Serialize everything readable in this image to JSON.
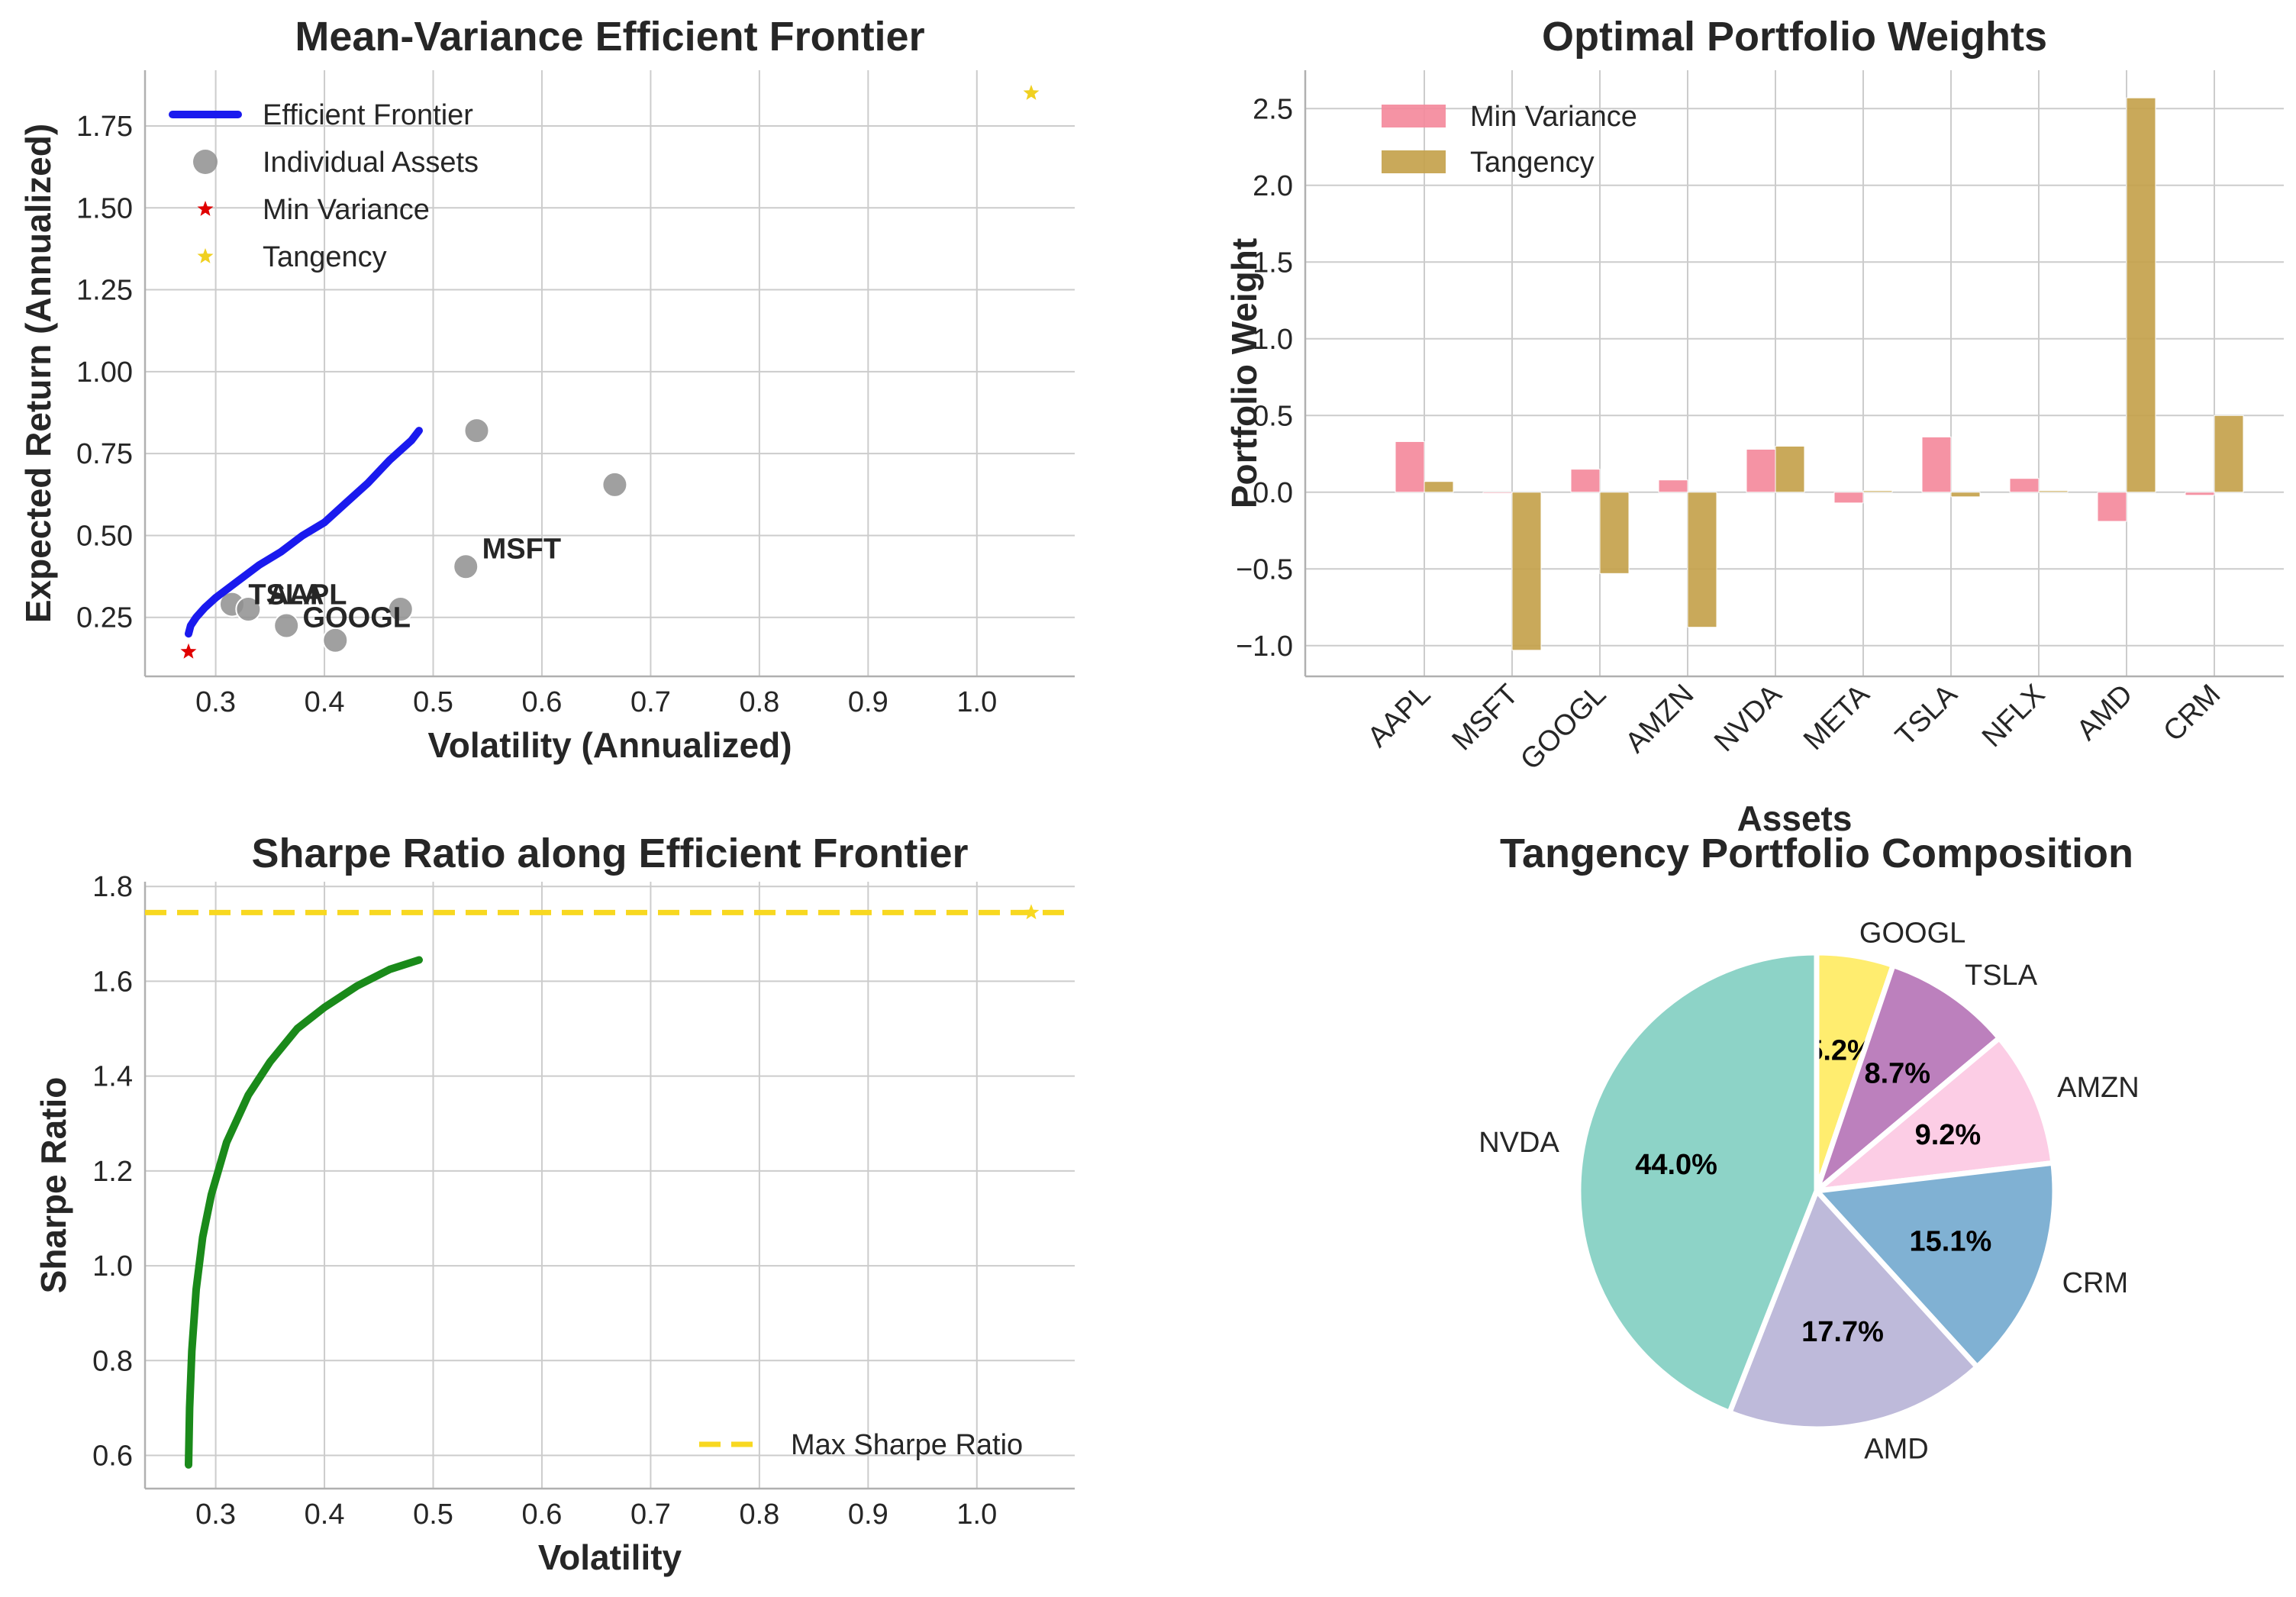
{
  "chart_data": [
    {
      "type": "scatter",
      "panel": "frontier",
      "title": "Mean-Variance Efficient Frontier",
      "xlabel": "Volatility (Annualized)",
      "ylabel": "Expected Return (Annualized)",
      "xlim": [
        0.235,
        1.09
      ],
      "ylim": [
        0.07,
        1.92
      ],
      "xticks": [
        0.3,
        0.4,
        0.5,
        0.6,
        0.7,
        0.8,
        0.9,
        1.0
      ],
      "yticks": [
        0.25,
        0.5,
        0.75,
        1.0,
        1.25,
        1.5,
        1.75
      ],
      "grid": true,
      "legend_position": "upper-left",
      "legend": [
        "Efficient Frontier",
        "Individual Assets",
        "Min Variance",
        "Tangency"
      ],
      "frontier": {
        "name": "Efficient Frontier",
        "color": "#1a1aee",
        "points": [
          [
            0.275,
            0.2
          ],
          [
            0.277,
            0.225
          ],
          [
            0.282,
            0.25
          ],
          [
            0.29,
            0.28
          ],
          [
            0.3,
            0.31
          ],
          [
            0.32,
            0.36
          ],
          [
            0.34,
            0.41
          ],
          [
            0.36,
            0.45
          ],
          [
            0.38,
            0.5
          ],
          [
            0.4,
            0.54
          ],
          [
            0.42,
            0.6
          ],
          [
            0.44,
            0.66
          ],
          [
            0.46,
            0.73
          ],
          [
            0.48,
            0.79
          ],
          [
            0.487,
            0.82
          ]
        ]
      },
      "assets": [
        {
          "x": 0.315,
          "y": 0.29
        },
        {
          "x": 0.33,
          "y": 0.275
        },
        {
          "x": 0.365,
          "y": 0.225
        },
        {
          "x": 0.41,
          "y": 0.18
        },
        {
          "x": 0.47,
          "y": 0.275
        },
        {
          "x": 0.53,
          "y": 0.405
        },
        {
          "x": 0.54,
          "y": 0.82
        },
        {
          "x": 0.667,
          "y": 0.655
        }
      ],
      "asset_labels": [
        {
          "text": "MSFT",
          "x": 0.545,
          "y": 0.43
        },
        {
          "text": "TSLA",
          "x": 0.33,
          "y": 0.29
        },
        {
          "text": "AAPL",
          "x": 0.348,
          "y": 0.29
        },
        {
          "text": "GOOGL",
          "x": 0.38,
          "y": 0.22
        }
      ],
      "asset_color": "#8f8f8f",
      "min_variance": {
        "x": 0.275,
        "y": 0.145,
        "color": "#e00000"
      },
      "tangency": {
        "x": 1.05,
        "y": 1.85,
        "color": "#f0d020"
      }
    },
    {
      "type": "bar",
      "panel": "weights",
      "title": "Optimal Portfolio Weights",
      "xlabel": "Assets",
      "ylabel": "Portfolio Weight",
      "categories": [
        "AAPL",
        "MSFT",
        "GOOGL",
        "AMZN",
        "NVDA",
        "META",
        "TSLA",
        "NFLX",
        "AMD",
        "CRM"
      ],
      "series": [
        {
          "name": "Min Variance",
          "color": "#f48a9c",
          "values": [
            0.33,
            0.0,
            0.15,
            0.08,
            0.28,
            -0.07,
            0.36,
            0.09,
            -0.19,
            -0.02
          ]
        },
        {
          "name": "Tangency",
          "color": "#c4a24c",
          "values": [
            0.07,
            -1.03,
            -0.53,
            -0.88,
            0.3,
            0.01,
            -0.03,
            0.01,
            2.57,
            0.5
          ]
        }
      ],
      "ylim": [
        -1.2,
        2.75
      ],
      "yticks": [
        -1.0,
        -0.5,
        0.0,
        0.5,
        1.0,
        1.5,
        2.0,
        2.5
      ],
      "ytick_labels": [
        "−1.0",
        "−0.5",
        "0.0",
        "0.5",
        "1.0",
        "1.5",
        "2.0",
        "2.5"
      ],
      "grid": true,
      "legend_position": "upper-left"
    },
    {
      "type": "line",
      "panel": "sharpe",
      "title": "Sharpe Ratio along Efficient Frontier",
      "xlabel": "Volatility",
      "ylabel": "Sharpe Ratio",
      "xlim": [
        0.235,
        1.09
      ],
      "ylim": [
        0.53,
        1.81
      ],
      "xticks": [
        0.3,
        0.4,
        0.5,
        0.6,
        0.7,
        0.8,
        0.9,
        1.0
      ],
      "yticks": [
        0.6,
        0.8,
        1.0,
        1.2,
        1.4,
        1.6,
        1.8
      ],
      "grid": true,
      "line": {
        "color": "#1a8a1a",
        "points": [
          [
            0.275,
            0.58
          ],
          [
            0.276,
            0.7
          ],
          [
            0.278,
            0.82
          ],
          [
            0.282,
            0.95
          ],
          [
            0.288,
            1.06
          ],
          [
            0.296,
            1.15
          ],
          [
            0.31,
            1.26
          ],
          [
            0.33,
            1.36
          ],
          [
            0.35,
            1.43
          ],
          [
            0.375,
            1.5
          ],
          [
            0.4,
            1.545
          ],
          [
            0.43,
            1.59
          ],
          [
            0.46,
            1.625
          ],
          [
            0.487,
            1.645
          ]
        ]
      },
      "max_sharpe": {
        "name": "Max Sharpe Ratio",
        "value": 1.745,
        "color": "#f8d820"
      },
      "tangency_marker": {
        "x": 1.05,
        "y": 1.745
      },
      "legend_position": "lower-right"
    },
    {
      "type": "pie",
      "panel": "composition",
      "title": "Tangency Portfolio Composition",
      "slices": [
        {
          "label": "GOOGL",
          "pct_label": "5.2%",
          "value": 5.2,
          "color": "#ffed6f"
        },
        {
          "label": "TSLA",
          "pct_label": "8.7%",
          "value": 8.7,
          "color": "#bc80bd"
        },
        {
          "label": "AMZN",
          "pct_label": "9.2%",
          "value": 9.2,
          "color": "#fccde5"
        },
        {
          "label": "CRM",
          "pct_label": "15.1%",
          "value": 15.1,
          "color": "#80b1d3"
        },
        {
          "label": "AMD",
          "pct_label": "17.7%",
          "value": 17.7,
          "color": "#bebada"
        },
        {
          "label": "NVDA",
          "pct_label": "44.0%",
          "value": 44.0,
          "color": "#8dd3c7"
        }
      ]
    }
  ]
}
